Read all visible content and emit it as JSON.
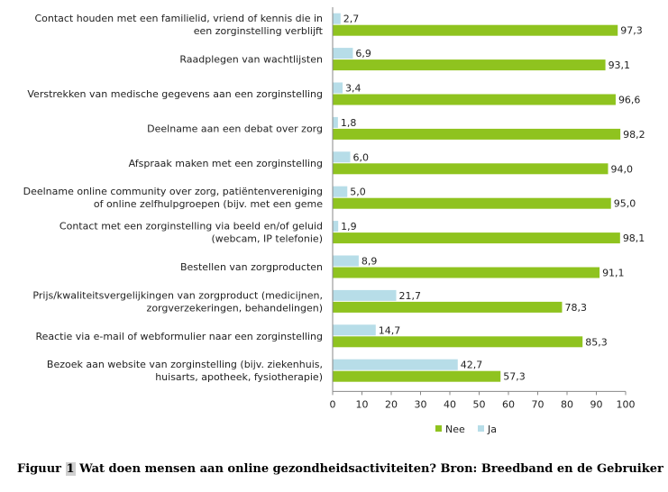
{
  "chart_data": {
    "type": "bar",
    "orientation": "horizontal",
    "categories": [
      [
        "Contact houden met een familielid, vriend of kennis die in",
        "een zorginstelling verblijft"
      ],
      [
        "Raadplegen van wachtlijsten"
      ],
      [
        "Verstrekken van medische gegevens aan een zorginstelling"
      ],
      [
        "Deelname aan een debat over zorg"
      ],
      [
        "Afspraak maken met een zorginstelling"
      ],
      [
        "Deelname online community over zorg, patiëntenvereniging",
        "of online zelfhulpgroepen (bijv. met een geme"
      ],
      [
        "Contact met een zorginstelling via beeld en/of geluid",
        "(webcam, IP telefonie)"
      ],
      [
        "Bestellen van zorgproducten"
      ],
      [
        "Prijs/kwaliteitsvergelijkingen van zorgproduct (medicijnen,",
        "zorgverzekeringen, behandelingen)"
      ],
      [
        "Reactie via e-mail of webformulier naar een zorginstelling"
      ],
      [
        "Bezoek aan website van zorginstelling (bijv. ziekenhuis,",
        "huisarts, apotheek, fysiotherapie)"
      ]
    ],
    "series": [
      {
        "name": "Ja",
        "color": "#b7dde8",
        "values": [
          2.7,
          6.9,
          3.4,
          1.8,
          6.0,
          5.0,
          1.9,
          8.9,
          21.7,
          14.7,
          42.7
        ],
        "labels": [
          "2,7",
          "6,9",
          "3,4",
          "1,8",
          "6,0",
          "5,0",
          "1,9",
          "8,9",
          "21,7",
          "14,7",
          "42,7"
        ]
      },
      {
        "name": "Nee",
        "color": "#8fc31f",
        "values": [
          97.3,
          93.1,
          96.6,
          98.2,
          94.0,
          95.0,
          98.1,
          91.1,
          78.3,
          85.3,
          57.3
        ],
        "labels": [
          "97,3",
          "93,1",
          "96,6",
          "98,2",
          "94,0",
          "95,0",
          "98,1",
          "91,1",
          "78,3",
          "85,3",
          "57,3"
        ]
      }
    ],
    "x_ticks": [
      "0",
      "10",
      "20",
      "30",
      "40",
      "50",
      "60",
      "70",
      "80",
      "90",
      "100"
    ],
    "xlim": [
      0,
      100
    ],
    "grid": false,
    "legend": {
      "placement": "bottom",
      "entries": [
        "Nee",
        "Ja"
      ]
    }
  },
  "caption": {
    "prefix": "Figuur ",
    "number": "1",
    "text": " Wat doen mensen aan online gezondheidsactiviteiten?  Bron: Breedband en de Gebruiker"
  }
}
